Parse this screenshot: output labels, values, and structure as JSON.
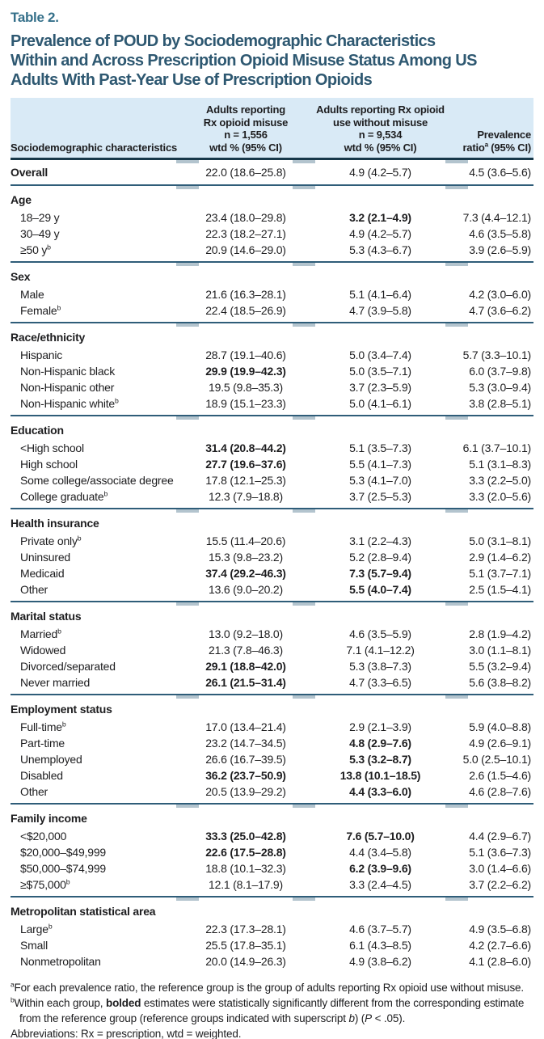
{
  "table_label": "Table 2.",
  "title_lines": [
    "Prevalence of POUD by Sociodemographic Characteristics",
    "Within and Across Prescription Opioid Misuse Status Among US",
    "Adults With Past-Year Use of Prescription Opioids"
  ],
  "header": {
    "col1": "Sociodemographic characteristics",
    "col2_lines": [
      "Adults reporting",
      "Rx opioid misuse",
      "n = 1,556",
      "wtd % (95% CI)"
    ],
    "col3_lines": [
      "Adults reporting Rx opioid",
      "use without misuse",
      "n = 9,534",
      "wtd % (95% CI)"
    ],
    "col4_line1": "Prevalence",
    "col4_pre": "ratio",
    "col4_sup": "a",
    "col4_post": " (95% CI)"
  },
  "overall": {
    "label": "Overall",
    "misuse": "22.0 (18.6–25.8)",
    "no_misuse": "4.9 (4.2–5.7)",
    "ratio": "4.5 (3.6–5.6)"
  },
  "sections": [
    {
      "title": "Age",
      "rows": [
        {
          "label": "18–29 y",
          "misuse": "23.4 (18.0–29.8)",
          "no_misuse": "3.2 (2.1–4.9)",
          "no_misuse_bold": true,
          "ratio": "7.3 (4.4–12.1)"
        },
        {
          "label": "30–49 y",
          "misuse": "22.3 (18.2–27.1)",
          "no_misuse": "4.9 (4.2–5.7)",
          "ratio": "4.6 (3.5–5.8)"
        },
        {
          "label": "≥50 y",
          "sup": "b",
          "misuse": "20.9 (14.6–29.0)",
          "no_misuse": "5.3 (4.3–6.7)",
          "ratio": "3.9 (2.6–5.9)"
        }
      ]
    },
    {
      "title": "Sex",
      "rows": [
        {
          "label": "Male",
          "misuse": "21.6 (16.3–28.1)",
          "no_misuse": "5.1 (4.1–6.4)",
          "ratio": "4.2 (3.0–6.0)"
        },
        {
          "label": "Female",
          "sup": "b",
          "misuse": "22.4 (18.5–26.9)",
          "no_misuse": "4.7 (3.9–5.8)",
          "ratio": "4.7 (3.6–6.2)"
        }
      ]
    },
    {
      "title": "Race/ethnicity",
      "rows": [
        {
          "label": "Hispanic",
          "misuse": "28.7 (19.1–40.6)",
          "no_misuse": "5.0 (3.4–7.4)",
          "ratio": "5.7 (3.3–10.1)"
        },
        {
          "label": "Non-Hispanic black",
          "misuse": "29.9 (19.9–42.3)",
          "misuse_bold": true,
          "no_misuse": "5.0 (3.5–7.1)",
          "ratio": "6.0 (3.7–9.8)"
        },
        {
          "label": "Non-Hispanic other",
          "misuse": "19.5 (9.8–35.3)",
          "no_misuse": "3.7 (2.3–5.9)",
          "ratio": "5.3 (3.0–9.4)"
        },
        {
          "label": "Non-Hispanic white",
          "sup": "b",
          "misuse": "18.9 (15.1–23.3)",
          "no_misuse": "5.0 (4.1–6.1)",
          "ratio": "3.8 (2.8–5.1)"
        }
      ]
    },
    {
      "title": "Education",
      "rows": [
        {
          "label": "<High school",
          "misuse": "31.4 (20.8–44.2)",
          "misuse_bold": true,
          "no_misuse": "5.1 (3.5–7.3)",
          "ratio": "6.1 (3.7–10.1)"
        },
        {
          "label": "High school",
          "misuse": "27.7 (19.6–37.6)",
          "misuse_bold": true,
          "no_misuse": "5.5 (4.1–7.3)",
          "ratio": "5.1 (3.1–8.3)"
        },
        {
          "label": "Some college/associate degree",
          "misuse": "17.8 (12.1–25.3)",
          "no_misuse": "5.3 (4.1–7.0)",
          "ratio": "3.3 (2.2–5.0)"
        },
        {
          "label": "College graduate",
          "sup": "b",
          "misuse": "12.3 (7.9–18.8)",
          "no_misuse": "3.7 (2.5–5.3)",
          "ratio": "3.3 (2.0–5.6)"
        }
      ]
    },
    {
      "title": "Health insurance",
      "rows": [
        {
          "label": "Private only",
          "sup": "b",
          "misuse": "15.5 (11.4–20.6)",
          "no_misuse": "3.1 (2.2–4.3)",
          "ratio": "5.0 (3.1–8.1)"
        },
        {
          "label": "Uninsured",
          "misuse": "15.3 (9.8–23.2)",
          "no_misuse": "5.2 (2.8–9.4)",
          "ratio": "2.9 (1.4–6.2)"
        },
        {
          "label": "Medicaid",
          "misuse": "37.4 (29.2–46.3)",
          "misuse_bold": true,
          "no_misuse": "7.3 (5.7–9.4)",
          "no_misuse_bold": true,
          "ratio": "5.1 (3.7–7.1)"
        },
        {
          "label": "Other",
          "misuse": "13.6 (9.0–20.2)",
          "no_misuse": "5.5 (4.0–7.4)",
          "no_misuse_bold": true,
          "ratio": "2.5 (1.5–4.1)"
        }
      ]
    },
    {
      "title": "Marital status",
      "rows": [
        {
          "label": "Married",
          "sup": "b",
          "misuse": "13.0 (9.2–18.0)",
          "no_misuse": "4.6 (3.5–5.9)",
          "ratio": "2.8 (1.9–4.2)"
        },
        {
          "label": "Widowed",
          "misuse": "21.3 (7.8–46.3)",
          "no_misuse": "7.1 (4.1–12.2)",
          "ratio": "3.0 (1.1–8.1)"
        },
        {
          "label": "Divorced/separated",
          "misuse": "29.1 (18.8–42.0)",
          "misuse_bold": true,
          "no_misuse": "5.3 (3.8–7.3)",
          "ratio": "5.5 (3.2–9.4)"
        },
        {
          "label": "Never married",
          "misuse": "26.1 (21.5–31.4)",
          "misuse_bold": true,
          "no_misuse": "4.7 (3.3–6.5)",
          "ratio": "5.6 (3.8–8.2)"
        }
      ]
    },
    {
      "title": "Employment status",
      "rows": [
        {
          "label": "Full-time",
          "sup": "b",
          "misuse": "17.0 (13.4–21.4)",
          "no_misuse": "2.9 (2.1–3.9)",
          "ratio": "5.9 (4.0–8.8)"
        },
        {
          "label": "Part-time",
          "misuse": "23.2 (14.7–34.5)",
          "no_misuse": "4.8 (2.9–7.6)",
          "no_misuse_bold": true,
          "ratio": "4.9 (2.6–9.1)"
        },
        {
          "label": "Unemployed",
          "misuse": "26.6 (16.7–39.5)",
          "no_misuse": "5.3 (3.2–8.7)",
          "no_misuse_bold": true,
          "ratio": "5.0 (2.5–10.1)"
        },
        {
          "label": "Disabled",
          "misuse": "36.2 (23.7–50.9)",
          "misuse_bold": true,
          "no_misuse": "13.8 (10.1–18.5)",
          "no_misuse_bold": true,
          "ratio": "2.6 (1.5–4.6)"
        },
        {
          "label": "Other",
          "misuse": "20.5 (13.9–29.2)",
          "no_misuse": "4.4 (3.3–6.0)",
          "no_misuse_bold": true,
          "ratio": "4.6 (2.8–7.6)"
        }
      ]
    },
    {
      "title": "Family income",
      "rows": [
        {
          "label": "<$20,000",
          "misuse": "33.3 (25.0–42.8)",
          "misuse_bold": true,
          "no_misuse": "7.6 (5.7–10.0)",
          "no_misuse_bold": true,
          "ratio": "4.4 (2.9–6.7)"
        },
        {
          "label": "$20,000–$49,999",
          "misuse": "22.6 (17.5–28.8)",
          "misuse_bold": true,
          "no_misuse": "4.4 (3.4–5.8)",
          "ratio": "5.1 (3.6–7.3)"
        },
        {
          "label": "$50,000–$74,999",
          "misuse": "18.8 (10.1–32.3)",
          "no_misuse": "6.2 (3.9–9.6)",
          "no_misuse_bold": true,
          "ratio": "3.0 (1.4–6.6)"
        },
        {
          "label": "≥$75,000",
          "sup": "b",
          "misuse": "12.1 (8.1–17.9)",
          "no_misuse": "3.3 (2.4–4.5)",
          "ratio": "3.7 (2.2–6.2)"
        }
      ]
    },
    {
      "title": "Metropolitan statistical area",
      "rows": [
        {
          "label": "Large",
          "sup": "b",
          "misuse": "22.3 (17.3–28.1)",
          "no_misuse": "4.6 (3.7–5.7)",
          "ratio": "4.9 (3.5–6.8)"
        },
        {
          "label": "Small",
          "misuse": "25.5 (17.8–35.1)",
          "no_misuse": "6.1 (4.3–8.5)",
          "ratio": "4.2 (2.7–6.6)"
        },
        {
          "label": "Nonmetropolitan",
          "misuse": "20.0 (14.9–26.3)",
          "no_misuse": "4.9 (3.8–6.2)",
          "ratio": "4.1 (2.8–6.0)"
        }
      ]
    }
  ],
  "footnotes": {
    "a_sup": "a",
    "a_text": "For each prevalence ratio, the reference group is the group of adults reporting Rx opioid use without misuse.",
    "b_sup": "b",
    "b_pre": "Within each group, ",
    "b_bold": "bolded",
    "b_mid": " estimates were statistically significantly different from the corresponding estimate",
    "b_line2_pre": "from the reference group (reference groups indicated with superscript ",
    "b_italic1": "b",
    "b_mid2": ") (",
    "b_italic2": "P",
    "b_end": " < .05).",
    "abbrev": "Abbreviations: Rx = prescription, wtd = weighted."
  },
  "colors": {
    "table_label": "#35708a",
    "title": "#2e5871",
    "header_bg": "#d9eaf6",
    "header_rule": "#17384a",
    "divider": "#2f5d79",
    "bottom_rule": "#2a5d7c"
  }
}
